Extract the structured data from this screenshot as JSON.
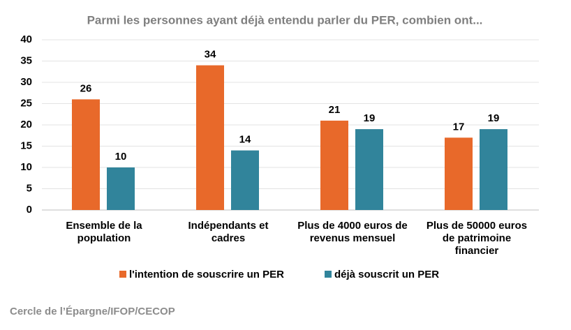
{
  "chart_data": {
    "type": "bar",
    "title": "Parmi les personnes ayant déjà entendu parler du PER, combien ont...",
    "categories": [
      "Ensemble de la\npopulation",
      "Indépendants et\ncadres",
      "Plus de 4000 euros de\nrevenus mensuel",
      "Plus de 50000 euros\nde patrimoine\nfinancier"
    ],
    "series": [
      {
        "name": "l'intention de souscrire un PER",
        "color": "#e8692a",
        "values": [
          26,
          34,
          21,
          17
        ]
      },
      {
        "name": "déjà souscrit un PER",
        "color": "#31849b",
        "values": [
          10,
          14,
          19,
          19
        ]
      }
    ],
    "ylim": [
      0,
      40
    ],
    "yticks": [
      0,
      5,
      10,
      15,
      20,
      25,
      30,
      35,
      40
    ],
    "grid": true,
    "legend": "bottom",
    "source": "Cercle de l’Épargne/IFOP/CECOP"
  }
}
